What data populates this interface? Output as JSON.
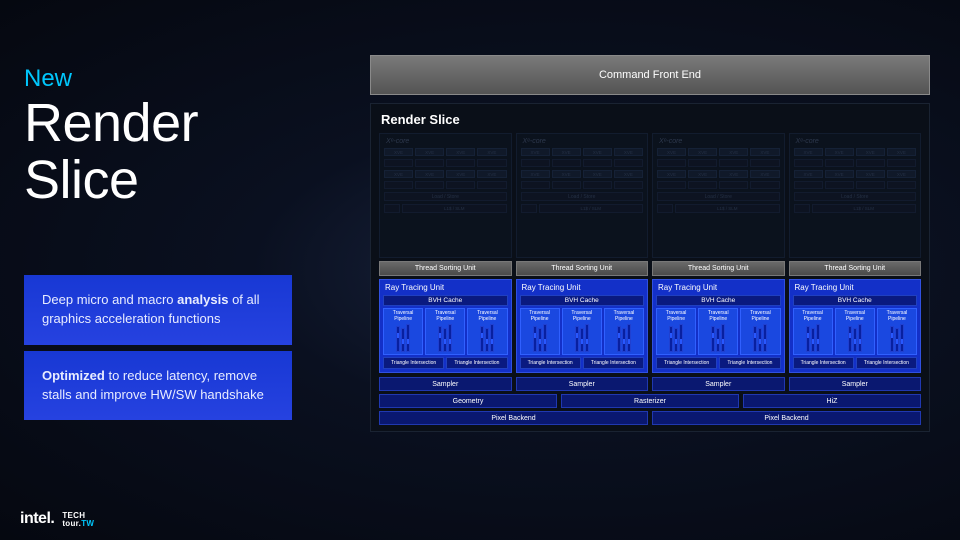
{
  "colors": {
    "accent_cyan": "#00c7fd",
    "blue_grad_top": "#1838d4",
    "blue_grad_bot": "#2642e0",
    "rtu_bg": "#1330c8",
    "bvh_bg": "#0a1a80",
    "pipe_bg": "#1a48e0",
    "sampler_bg": "#0a1870",
    "cmd_grad_top": "#7a7a7a",
    "cmd_grad_bot": "#545454",
    "page_bg": "#050810"
  },
  "typography": {
    "title_fontsize_pt": 40,
    "new_label_fontsize_pt": 18,
    "bullet_fontsize_pt": 10,
    "diagram_title_fontsize_pt": 10
  },
  "left": {
    "new_label": "New",
    "title_l1": "Render",
    "title_l2": "Slice",
    "bullet1_pre": "Deep micro and macro ",
    "bullet1_strong": "analysis",
    "bullet1_post": " of all graphics acceleration functions",
    "bullet2_strong": "Optimized",
    "bullet2_post": " to reduce latency, remove stalls and improve HW/SW handshake"
  },
  "footer": {
    "intel": "intel.",
    "tech_l1": "TECH",
    "tech_l2": "tour.",
    "tech_l3": "TW"
  },
  "diagram": {
    "command_front_end": "Command Front End",
    "render_slice_title": "Render Slice",
    "core_count": 4,
    "xe_core_label": "Xᵉ-core",
    "xve_label": "XVE",
    "load_store": "Load / Store",
    "slm": "L1$ / SLM",
    "thread_sorting_unit": "Thread Sorting Unit",
    "ray_tracing_unit": "Ray Tracing Unit",
    "bvh_cache": "BVH Cache",
    "traversal_pipeline": "Traversal Pipeline",
    "triangle_intersection": "Triangle Intersection",
    "sampler": "Sampler",
    "geometry": "Geometry",
    "rasterizer": "Rasterizer",
    "hiz": "HiZ",
    "pixel_backend": "Pixel Backend",
    "pipe_bars_per_pipeline": 3,
    "pipelines_per_rtu": 3,
    "pbar_heights": [
      26,
      24,
      28
    ]
  }
}
